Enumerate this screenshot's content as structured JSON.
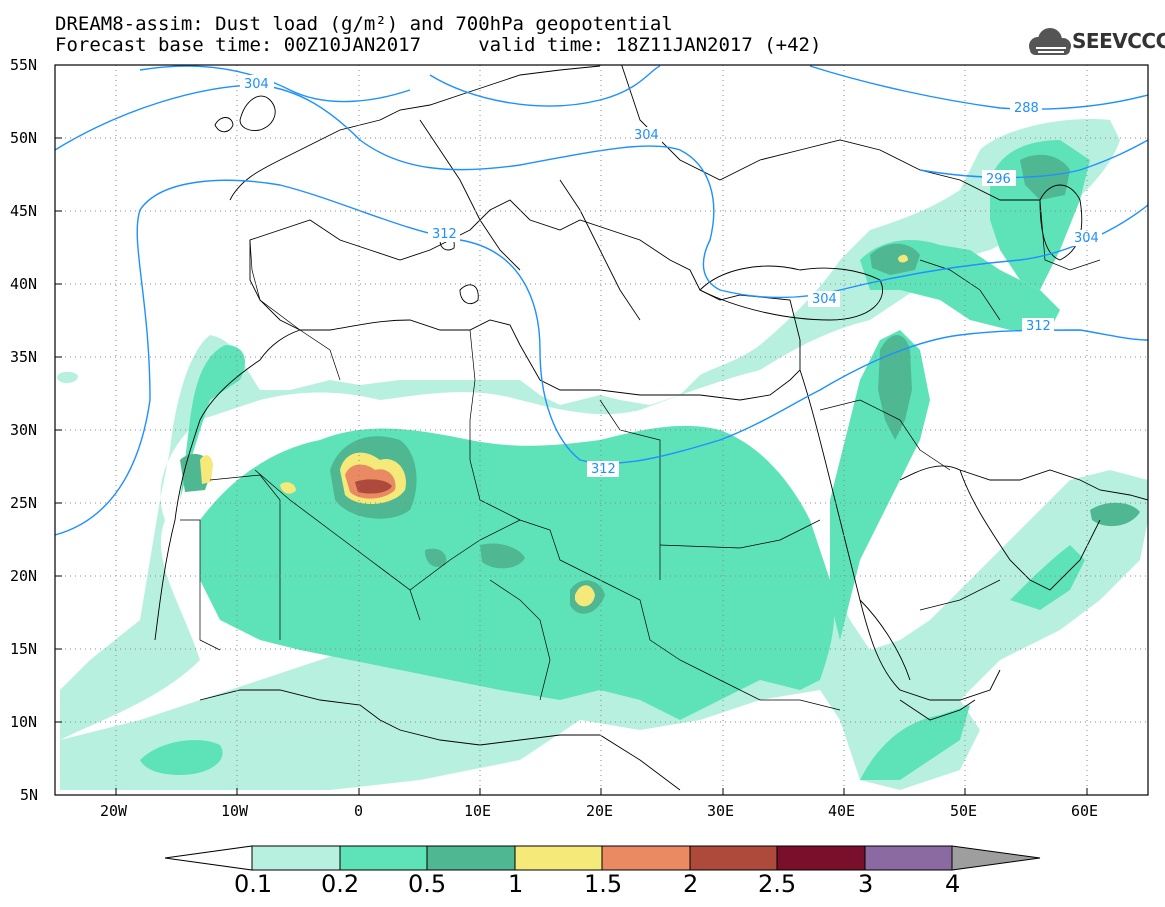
{
  "title": {
    "line1": "DREAM8-assim: Dust load (g/m²) and 700hPa geopotential",
    "line2": "Forecast base time: 00Z10JAN2017     valid time: 18Z11JAN2017 (+42)"
  },
  "logo": {
    "text": "SEEVCCC",
    "icon": "cloud-icon"
  },
  "lat_labels": [
    "55N",
    "50N",
    "45N",
    "40N",
    "35N",
    "30N",
    "25N",
    "20N",
    "15N",
    "10N",
    "5N"
  ],
  "lon_labels": [
    "20W",
    "10W",
    "0",
    "10E",
    "20E",
    "30E",
    "40E",
    "50E",
    "60E"
  ],
  "contour_labels": [
    "304",
    "288",
    "304",
    "296",
    "312",
    "304",
    "304",
    "312",
    "312"
  ],
  "colorbar": {
    "labels": [
      "0.1",
      "0.2",
      "0.5",
      "1",
      "1.5",
      "2",
      "2.5",
      "3",
      "4"
    ],
    "colors": [
      "#ffffff",
      "#b8f0e0",
      "#5ee3b8",
      "#4fb893",
      "#f5e97a",
      "#e98a63",
      "#ad4a3c",
      "#7a0f2c",
      "#8a6aa0",
      "#9e9e9e"
    ]
  },
  "colors": {
    "contour_line": "#1e90ff",
    "coastline": "#000000"
  }
}
